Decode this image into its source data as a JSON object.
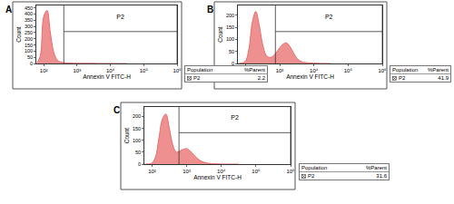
{
  "chart_data": [
    {
      "type": "area",
      "title": "A",
      "xlabel": "Annexin V FITC-H",
      "ylabel": "Count",
      "log": "x",
      "grid": false,
      "color": "#e96b6b",
      "x": [
        63,
        79,
        100,
        126,
        158,
        200,
        251,
        316,
        398,
        501,
        631,
        794,
        1000,
        1259,
        1585,
        1995,
        2512,
        3162,
        3981,
        5012,
        6310,
        7943,
        10000,
        12589,
        15849,
        19953,
        25119,
        31623
      ],
      "values": [
        5,
        60,
        380,
        430,
        250,
        90,
        30,
        12,
        6,
        4,
        3,
        2,
        2,
        1,
        1,
        1,
        1,
        1,
        0,
        0,
        0,
        0,
        0,
        0,
        0,
        0,
        0,
        0
      ],
      "xlim": [
        60,
        1000000
      ],
      "xticks": [
        {
          "value": 100,
          "label": "10²"
        },
        {
          "value": 1000,
          "label": "10³"
        },
        {
          "value": 10000,
          "label": "10⁴"
        },
        {
          "value": 100000,
          "label": "10⁵"
        },
        {
          "value": 1000000,
          "label": "10⁶"
        }
      ],
      "ylim": [
        0,
        470
      ],
      "yticks": [
        0,
        50,
        100,
        150,
        200,
        250,
        300,
        350,
        400,
        450
      ],
      "gate": {
        "label": "P2",
        "x": [
          400,
          1000000
        ]
      },
      "stats": {
        "header": [
          "Population",
          "%Parent"
        ],
        "rows": [
          {
            "population": "P2",
            "value": 2.2
          }
        ]
      }
    },
    {
      "type": "area",
      "title": "B",
      "xlabel": "Annexin V FITC-H",
      "ylabel": "Count",
      "log": "x",
      "grid": false,
      "color": "#e96b6b",
      "x": [
        63,
        79,
        100,
        126,
        158,
        200,
        251,
        316,
        398,
        501,
        631,
        794,
        1000,
        1259,
        1585,
        1995,
        2512,
        3162,
        3981,
        5012,
        6310,
        7943,
        10000,
        12589,
        15849,
        19953,
        25119,
        31623
      ],
      "values": [
        0,
        2,
        10,
        60,
        170,
        215,
        160,
        80,
        35,
        25,
        30,
        45,
        65,
        80,
        85,
        70,
        45,
        22,
        10,
        5,
        3,
        2,
        1,
        1,
        0,
        0,
        0,
        0
      ],
      "xlim": [
        60,
        1000000
      ],
      "xticks": [
        {
          "value": 100,
          "label": "10²"
        },
        {
          "value": 1000,
          "label": "10³"
        },
        {
          "value": 10000,
          "label": "10⁴"
        },
        {
          "value": 100000,
          "label": "10⁵"
        },
        {
          "value": 1000000,
          "label": "10⁶"
        }
      ],
      "ylim": [
        0,
        240
      ],
      "yticks": [
        0,
        50,
        100,
        150,
        200
      ],
      "gate": {
        "label": "P2",
        "x": [
          750,
          1000000
        ]
      },
      "stats": {
        "header": [
          "Population",
          "%Parent"
        ],
        "rows": [
          {
            "population": "P2",
            "value": 41.9
          }
        ]
      }
    },
    {
      "type": "area",
      "title": "C",
      "xlabel": "Annexin V FITC-H",
      "ylabel": "Count",
      "log": "x",
      "grid": false,
      "color": "#e96b6b",
      "x": [
        63,
        79,
        100,
        126,
        158,
        200,
        251,
        316,
        398,
        501,
        631,
        794,
        1000,
        1259,
        1585,
        1995,
        2512,
        3162,
        3981,
        5012,
        6310,
        7943,
        10000,
        12589,
        15849,
        19953,
        25119,
        31623
      ],
      "values": [
        0,
        1,
        5,
        30,
        110,
        190,
        210,
        150,
        80,
        50,
        55,
        62,
        65,
        55,
        40,
        25,
        14,
        8,
        4,
        2,
        1,
        1,
        0,
        0,
        0,
        0,
        0,
        0
      ],
      "xlim": [
        60,
        1000000
      ],
      "xticks": [
        {
          "value": 100,
          "label": "10²"
        },
        {
          "value": 1000,
          "label": "10³"
        },
        {
          "value": 10000,
          "label": "10⁴"
        },
        {
          "value": 100000,
          "label": "10⁵"
        },
        {
          "value": 1000000,
          "label": "10⁶"
        }
      ],
      "ylim": [
        0,
        240
      ],
      "yticks": [
        0,
        50,
        100,
        150,
        200
      ],
      "gate": {
        "label": "P2",
        "x": [
          600,
          1000000
        ]
      },
      "stats": {
        "header": [
          "Population",
          "%Parent"
        ],
        "rows": [
          {
            "population": "P2",
            "value": 31.6
          }
        ]
      }
    }
  ]
}
